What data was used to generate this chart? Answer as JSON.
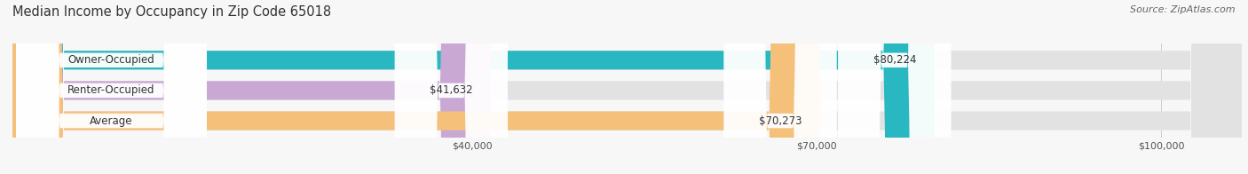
{
  "title": "Median Income by Occupancy in Zip Code 65018",
  "source": "Source: ZipAtlas.com",
  "categories": [
    "Owner-Occupied",
    "Renter-Occupied",
    "Average"
  ],
  "values": [
    80224,
    41632,
    70273
  ],
  "labels": [
    "$80,224",
    "$41,632",
    "$70,273"
  ],
  "colors": [
    "#29b8c2",
    "#c9a8d4",
    "#f5c07a"
  ],
  "bar_bg_color": "#e2e2e2",
  "xmax": 107000,
  "xticks": [
    40000,
    70000,
    100000
  ],
  "xticklabels": [
    "$40,000",
    "$70,000",
    "$100,000"
  ],
  "bar_height": 0.62,
  "fig_bg": "#f7f7f7",
  "title_fontsize": 10.5,
  "label_fontsize": 8.5,
  "source_fontsize": 8
}
